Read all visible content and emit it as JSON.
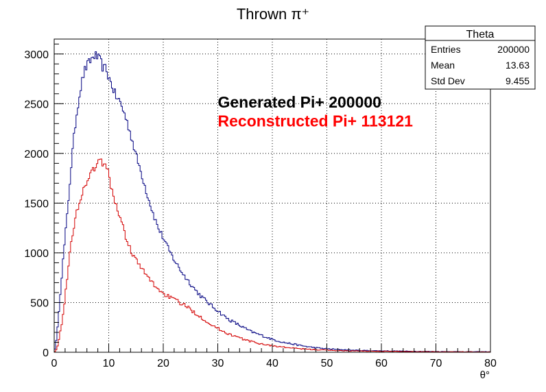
{
  "chart_data": {
    "type": "histogram",
    "title": "Thrown π⁺",
    "xlabel": "θ°",
    "ylabel": "",
    "xlim": [
      0,
      80
    ],
    "ylim": [
      0,
      3150
    ],
    "x_ticks": [
      0,
      10,
      20,
      30,
      40,
      50,
      60,
      70,
      80
    ],
    "y_ticks": [
      0,
      500,
      1000,
      1500,
      2000,
      2500,
      3000
    ],
    "grid": true,
    "series": [
      {
        "id": "generated",
        "color": "#000080",
        "points": [
          [
            0,
            0
          ],
          [
            0.5,
            150
          ],
          [
            1,
            520
          ],
          [
            1.5,
            850
          ],
          [
            2,
            1150
          ],
          [
            2.5,
            1450
          ],
          [
            3,
            1800
          ],
          [
            3.5,
            2100
          ],
          [
            4,
            2350
          ],
          [
            4.5,
            2550
          ],
          [
            5,
            2700
          ],
          [
            5.5,
            2820
          ],
          [
            6,
            2880
          ],
          [
            6.5,
            2920
          ],
          [
            7,
            2960
          ],
          [
            7.5,
            2990
          ],
          [
            8,
            2960
          ],
          [
            8.5,
            2930
          ],
          [
            9,
            2850
          ],
          [
            9.5,
            2860
          ],
          [
            10,
            2760
          ],
          [
            10.5,
            2700
          ],
          [
            11,
            2620
          ],
          [
            11.5,
            2550
          ],
          [
            12,
            2530
          ],
          [
            13,
            2380
          ],
          [
            14,
            2200
          ],
          [
            15,
            1980
          ],
          [
            16,
            1800
          ],
          [
            17,
            1600
          ],
          [
            18,
            1420
          ],
          [
            19,
            1260
          ],
          [
            20,
            1150
          ],
          [
            21,
            1030
          ],
          [
            22,
            930
          ],
          [
            23,
            840
          ],
          [
            24,
            760
          ],
          [
            25,
            690
          ],
          [
            26,
            620
          ],
          [
            27,
            560
          ],
          [
            28,
            510
          ],
          [
            29,
            460
          ],
          [
            30,
            420
          ],
          [
            31,
            370
          ],
          [
            32,
            330
          ],
          [
            33,
            300
          ],
          [
            34,
            270
          ],
          [
            35,
            240
          ],
          [
            36,
            210
          ],
          [
            37,
            190
          ],
          [
            38,
            170
          ],
          [
            39,
            150
          ],
          [
            40,
            130
          ],
          [
            42,
            100
          ],
          [
            44,
            80
          ],
          [
            46,
            60
          ],
          [
            48,
            45
          ],
          [
            50,
            35
          ],
          [
            52,
            28
          ],
          [
            55,
            20
          ],
          [
            60,
            14
          ],
          [
            65,
            10
          ],
          [
            70,
            7
          ],
          [
            75,
            5
          ],
          [
            80,
            5
          ]
        ]
      },
      {
        "id": "reconstructed",
        "color": "#d40000",
        "points": [
          [
            0,
            0
          ],
          [
            0.5,
            40
          ],
          [
            1,
            160
          ],
          [
            1.5,
            330
          ],
          [
            2,
            560
          ],
          [
            2.5,
            820
          ],
          [
            3,
            1050
          ],
          [
            3.5,
            1200
          ],
          [
            4,
            1380
          ],
          [
            4.5,
            1500
          ],
          [
            5,
            1580
          ],
          [
            5.5,
            1650
          ],
          [
            6,
            1720
          ],
          [
            6.5,
            1770
          ],
          [
            7,
            1830
          ],
          [
            7.5,
            1870
          ],
          [
            8,
            1900
          ],
          [
            8.5,
            1920
          ],
          [
            9,
            1900
          ],
          [
            9.5,
            1880
          ],
          [
            10,
            1780
          ],
          [
            10.5,
            1650
          ],
          [
            11,
            1540
          ],
          [
            11.5,
            1450
          ],
          [
            12,
            1380
          ],
          [
            13,
            1180
          ],
          [
            14,
            1030
          ],
          [
            15,
            930
          ],
          [
            16,
            840
          ],
          [
            17,
            770
          ],
          [
            18,
            700
          ],
          [
            19,
            640
          ],
          [
            20,
            590
          ],
          [
            21,
            560
          ],
          [
            22,
            530
          ],
          [
            23,
            500
          ],
          [
            24,
            470
          ],
          [
            25,
            430
          ],
          [
            26,
            390
          ],
          [
            27,
            350
          ],
          [
            28,
            310
          ],
          [
            29,
            270
          ],
          [
            30,
            240
          ],
          [
            31,
            210
          ],
          [
            32,
            185
          ],
          [
            33,
            165
          ],
          [
            34,
            145
          ],
          [
            35,
            125
          ],
          [
            36,
            110
          ],
          [
            37,
            95
          ],
          [
            38,
            85
          ],
          [
            39,
            75
          ],
          [
            40,
            65
          ],
          [
            42,
            52
          ],
          [
            44,
            40
          ],
          [
            46,
            32
          ],
          [
            48,
            26
          ],
          [
            50,
            21
          ],
          [
            52,
            17
          ],
          [
            55,
            13
          ],
          [
            60,
            10
          ],
          [
            65,
            7
          ],
          [
            70,
            5
          ],
          [
            75,
            4
          ],
          [
            80,
            3
          ]
        ]
      }
    ],
    "annotations": [
      {
        "text": "Generated Pi+ 200000",
        "color": "#000000",
        "x": 30,
        "y": 2460
      },
      {
        "text": "Reconstructed Pi+ 113121",
        "color": "#ff0000",
        "x": 30,
        "y": 2270
      }
    ],
    "stats_box": {
      "title": "Theta",
      "rows": [
        {
          "label": "Entries",
          "value": "200000"
        },
        {
          "label": "Mean",
          "value": "13.63"
        },
        {
          "label": "Std Dev",
          "value": "9.455"
        }
      ]
    }
  }
}
